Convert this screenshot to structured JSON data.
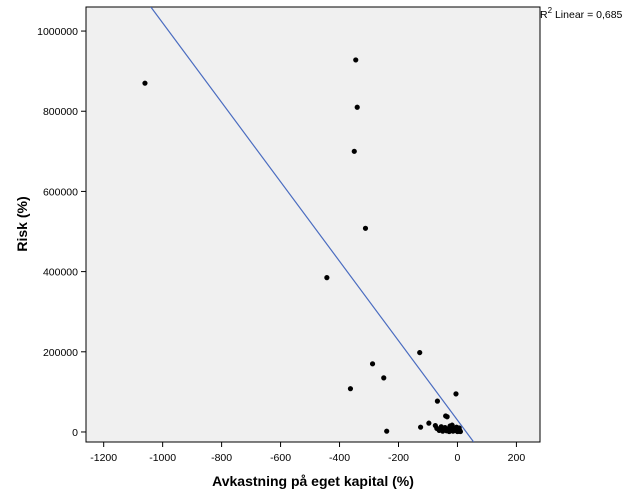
{
  "chart_data": {
    "type": "scatter",
    "title": "",
    "xlabel": "Avkastning på eget kapital (%)",
    "ylabel": "Risk (%)",
    "xlim": [
      -1260,
      280
    ],
    "ylim": [
      -25000,
      1060000
    ],
    "xticks": [
      -1200,
      -1000,
      -800,
      -600,
      -400,
      -200,
      0,
      200
    ],
    "yticks": [
      0,
      200000,
      400000,
      600000,
      800000,
      1000000
    ],
    "grid": false,
    "background": "#f0f0f0",
    "point_color": "#000000",
    "fit_line_color": "#4a6cc0",
    "fit_line": {
      "type": "linear",
      "label_prefix": "R",
      "label_sup": "2",
      "label_suffix": " Linear = 0,685",
      "points": [
        [
          -1040,
          1060000
        ],
        [
          55,
          -25000
        ]
      ]
    },
    "points": [
      [
        -1060,
        870000
      ],
      [
        -345,
        928000
      ],
      [
        -340,
        810000
      ],
      [
        -350,
        700000
      ],
      [
        -312,
        508000
      ],
      [
        -443,
        385000
      ],
      [
        -128,
        198000
      ],
      [
        -288,
        170000
      ],
      [
        -250,
        135000
      ],
      [
        -363,
        108000
      ],
      [
        -5,
        95000
      ],
      [
        -68,
        77000
      ],
      [
        -40,
        40000
      ],
      [
        -35,
        38000
      ],
      [
        -97,
        22000
      ],
      [
        -125,
        12000
      ],
      [
        -240,
        2000
      ],
      [
        -75,
        16000
      ],
      [
        -70,
        9000
      ],
      [
        -62,
        4000
      ],
      [
        -55,
        13000
      ],
      [
        -48,
        7000
      ],
      [
        -42,
        11000
      ],
      [
        -37,
        3000
      ],
      [
        -30,
        8000
      ],
      [
        -25,
        15000
      ],
      [
        -20,
        5000
      ],
      [
        -15,
        2000
      ],
      [
        -10,
        9000
      ],
      [
        -6,
        4000
      ],
      [
        -3,
        12000
      ],
      [
        0,
        1000
      ],
      [
        2,
        6000
      ],
      [
        4,
        2000
      ],
      [
        6,
        10000
      ],
      [
        8,
        3000
      ],
      [
        10,
        1000
      ],
      [
        -50,
        2000
      ],
      [
        -28,
        1000
      ],
      [
        -18,
        17000
      ]
    ]
  }
}
